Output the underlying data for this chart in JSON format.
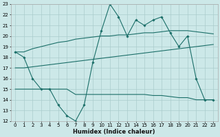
{
  "xlabel": "Humidex (Indice chaleur)",
  "bg_color": "#cce8e8",
  "grid_color": "#aacccc",
  "line_color": "#1a6e68",
  "xlim": [
    -0.5,
    23.5
  ],
  "ylim": [
    12,
    23
  ],
  "xticks": [
    0,
    1,
    2,
    3,
    4,
    5,
    6,
    7,
    8,
    9,
    10,
    11,
    12,
    13,
    14,
    15,
    16,
    17,
    18,
    19,
    20,
    21,
    22,
    23
  ],
  "yticks": [
    12,
    13,
    14,
    15,
    16,
    17,
    18,
    19,
    20,
    21,
    22,
    23
  ],
  "line1_x": [
    0,
    1,
    2,
    3,
    4,
    5,
    6,
    7,
    8,
    9,
    10,
    11,
    12,
    13,
    14,
    15,
    16,
    17,
    18,
    19,
    20,
    21,
    22,
    23
  ],
  "line1_y": [
    18.5,
    18.0,
    16.0,
    15.0,
    15.0,
    13.5,
    12.5,
    12.0,
    13.5,
    17.5,
    20.5,
    23.0,
    21.8,
    20.0,
    21.5,
    21.0,
    21.5,
    21.8,
    20.3,
    19.0,
    20.0,
    16.0,
    14.0,
    14.0
  ],
  "line2_x": [
    0,
    1,
    2,
    3,
    4,
    5,
    6,
    7,
    8,
    9,
    10,
    11,
    12,
    13,
    14,
    15,
    16,
    17,
    18,
    19,
    20,
    21,
    22,
    23
  ],
  "line2_y": [
    18.5,
    18.5,
    18.8,
    19.0,
    19.2,
    19.4,
    19.5,
    19.7,
    19.8,
    19.9,
    20.0,
    20.0,
    20.1,
    20.1,
    20.2,
    20.3,
    20.3,
    20.4,
    20.5,
    20.5,
    20.5,
    20.4,
    20.3,
    20.2
  ],
  "line3_x": [
    0,
    1,
    2,
    3,
    4,
    5,
    6,
    7,
    8,
    9,
    10,
    11,
    12,
    13,
    14,
    15,
    16,
    17,
    18,
    19,
    20,
    21,
    22,
    23
  ],
  "line3_y": [
    17.0,
    17.0,
    17.1,
    17.2,
    17.3,
    17.4,
    17.5,
    17.6,
    17.7,
    17.8,
    17.9,
    18.0,
    18.1,
    18.2,
    18.3,
    18.4,
    18.5,
    18.6,
    18.7,
    18.8,
    18.9,
    19.0,
    19.1,
    19.2
  ],
  "line4_x": [
    0,
    1,
    2,
    3,
    4,
    5,
    6,
    7,
    8,
    9,
    10,
    11,
    12,
    13,
    14,
    15,
    16,
    17,
    18,
    19,
    20,
    21,
    22,
    23
  ],
  "line4_y": [
    15.0,
    15.0,
    15.0,
    15.0,
    15.0,
    15.0,
    15.0,
    14.5,
    14.5,
    14.5,
    14.5,
    14.5,
    14.5,
    14.5,
    14.5,
    14.5,
    14.4,
    14.4,
    14.3,
    14.2,
    14.2,
    14.0,
    14.0,
    14.0
  ]
}
